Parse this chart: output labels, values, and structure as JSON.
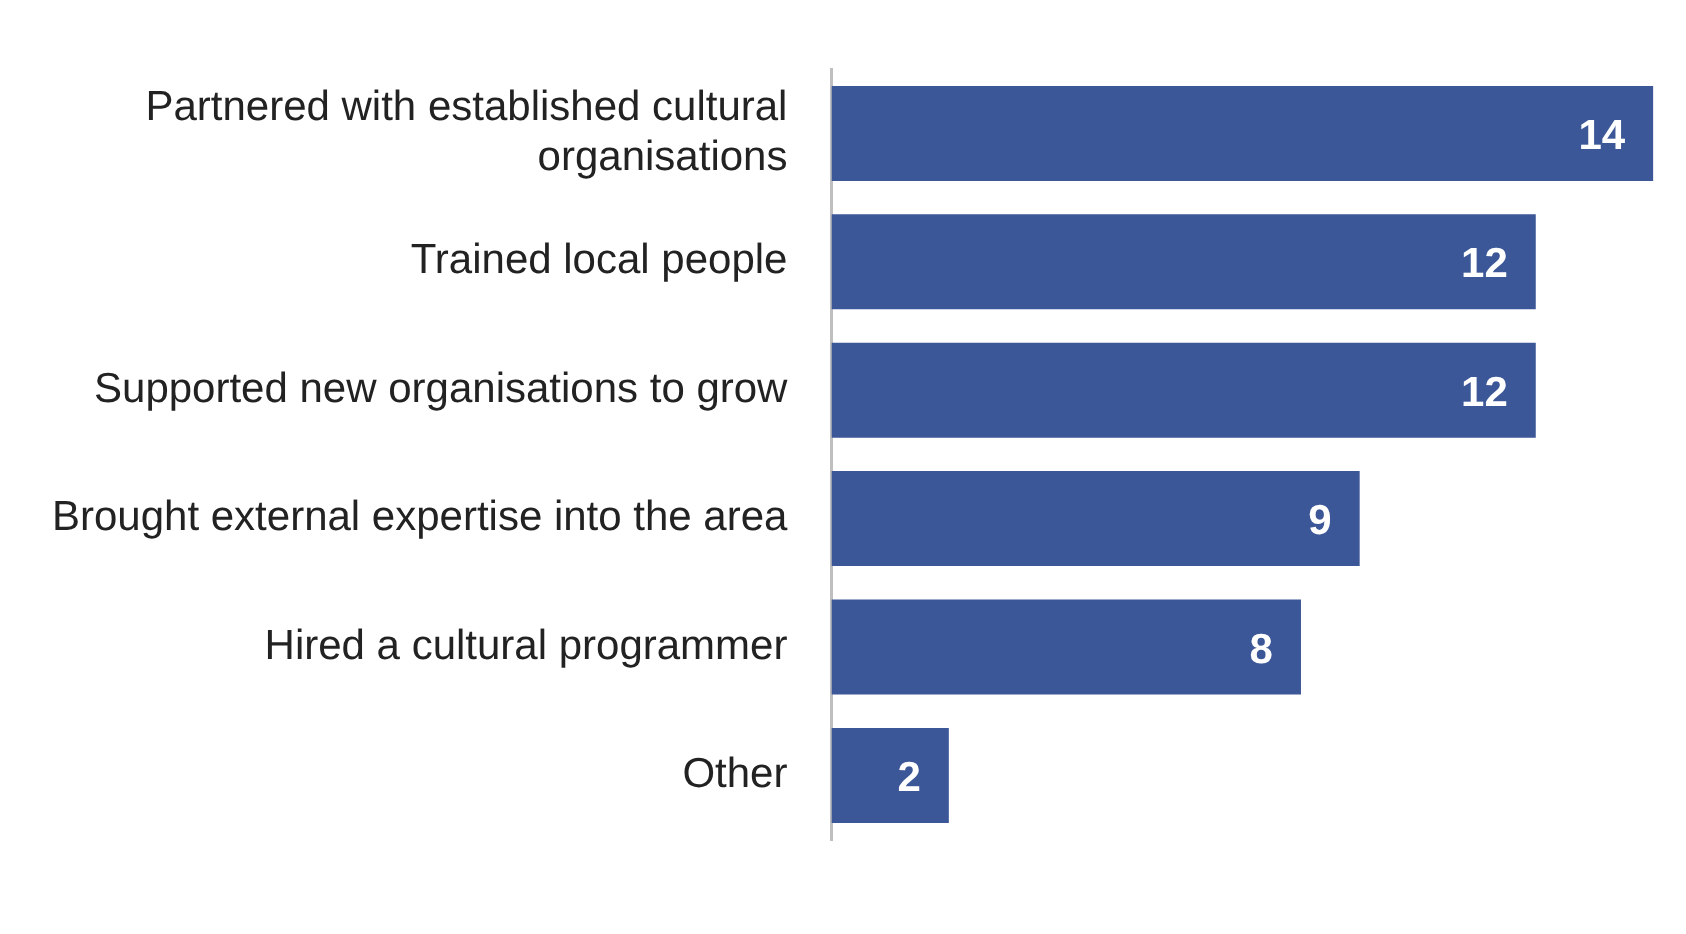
{
  "chart_data": {
    "type": "bar",
    "orientation": "horizontal",
    "categories": [
      "Partnered with established cultural organisations",
      "Trained local people",
      "Supported new organisations to grow",
      "Brought external expertise into the area",
      "Hired a cultural programmer",
      "Other"
    ],
    "values": [
      14,
      12,
      12,
      9,
      8,
      2
    ],
    "color": "#3c5797",
    "data_labels": true,
    "legend": false
  }
}
